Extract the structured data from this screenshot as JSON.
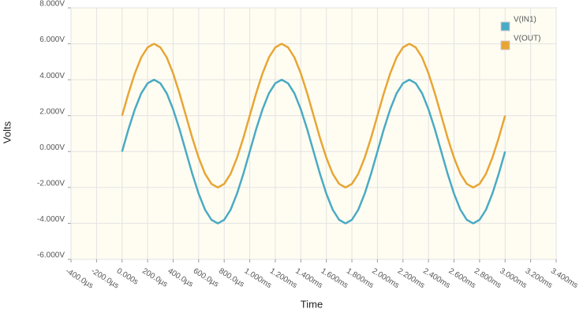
{
  "chart_data": {
    "type": "line",
    "x_label": "Time",
    "y_label": "Volts",
    "x": [
      0,
      0.05,
      0.1,
      0.15,
      0.2,
      0.25,
      0.3,
      0.35,
      0.4,
      0.45,
      0.5,
      0.55,
      0.6,
      0.65,
      0.7,
      0.75,
      0.8,
      0.85,
      0.9,
      0.95,
      1,
      1.05,
      1.1,
      1.15,
      1.2,
      1.25,
      1.3,
      1.35,
      1.4,
      1.45,
      1.5,
      1.55,
      1.6,
      1.65,
      1.7,
      1.75,
      1.8,
      1.85,
      1.9,
      1.95,
      2,
      2.05,
      2.1,
      2.15,
      2.2,
      2.25,
      2.3,
      2.35,
      2.4,
      2.45,
      2.5,
      2.55,
      2.6,
      2.65,
      2.7,
      2.75,
      2.8,
      2.85,
      2.9,
      2.95,
      3
    ],
    "series": [
      {
        "name": "V(IN1)",
        "color": "#4aaac4",
        "values": [
          0,
          1.24,
          2.35,
          3.24,
          3.8,
          4,
          3.8,
          3.24,
          2.35,
          1.24,
          0,
          -1.24,
          -2.35,
          -3.24,
          -3.8,
          -4,
          -3.8,
          -3.24,
          -2.35,
          -1.24,
          0,
          1.24,
          2.35,
          3.24,
          3.8,
          4,
          3.8,
          3.24,
          2.35,
          1.24,
          0,
          -1.24,
          -2.35,
          -3.24,
          -3.8,
          -4,
          -3.8,
          -3.24,
          -2.35,
          -1.24,
          0,
          1.24,
          2.35,
          3.24,
          3.8,
          4,
          3.8,
          3.24,
          2.35,
          1.24,
          0,
          -1.24,
          -2.35,
          -3.24,
          -3.8,
          -4,
          -3.8,
          -3.24,
          -2.35,
          -1.24,
          0
        ]
      },
      {
        "name": "V(OUT)",
        "color": "#e8a535",
        "values": [
          2,
          3.24,
          4.35,
          5.24,
          5.8,
          6,
          5.8,
          5.24,
          4.35,
          3.24,
          2,
          0.76,
          -0.35,
          -1.24,
          -1.8,
          -2,
          -1.8,
          -1.24,
          -0.35,
          0.76,
          2,
          3.24,
          4.35,
          5.24,
          5.8,
          6,
          5.8,
          5.24,
          4.35,
          3.24,
          2,
          0.76,
          -0.35,
          -1.24,
          -1.8,
          -2,
          -1.8,
          -1.24,
          -0.35,
          0.76,
          2,
          3.24,
          4.35,
          5.24,
          5.8,
          6,
          5.8,
          5.24,
          4.35,
          3.24,
          2,
          0.76,
          -0.35,
          -1.24,
          -1.8,
          -2,
          -1.8,
          -1.24,
          -0.35,
          0.76,
          2
        ]
      }
    ],
    "xlim": [
      -0.4,
      3.4
    ],
    "xticks": [
      {
        "value": -0.4,
        "label": "-400.0µs"
      },
      {
        "value": -0.2,
        "label": "-200.0µs"
      },
      {
        "value": 0,
        "label": "0.000s"
      },
      {
        "value": 0.2,
        "label": "200.0µs"
      },
      {
        "value": 0.4,
        "label": "400.0µs"
      },
      {
        "value": 0.6,
        "label": "600.0µs"
      },
      {
        "value": 0.8,
        "label": "800.0µs"
      },
      {
        "value": 1,
        "label": "1.000ms"
      },
      {
        "value": 1.2,
        "label": "1.200ms"
      },
      {
        "value": 1.4,
        "label": "1.400ms"
      },
      {
        "value": 1.6,
        "label": "1.600ms"
      },
      {
        "value": 1.8,
        "label": "1.800ms"
      },
      {
        "value": 2,
        "label": "2.000ms"
      },
      {
        "value": 2.2,
        "label": "2.200ms"
      },
      {
        "value": 2.4,
        "label": "2.400ms"
      },
      {
        "value": 2.6,
        "label": "2.600ms"
      },
      {
        "value": 2.8,
        "label": "2.800ms"
      },
      {
        "value": 3,
        "label": "3.000ms"
      },
      {
        "value": 3.2,
        "label": "3.200ms"
      },
      {
        "value": 3.4,
        "label": "3.400ms"
      }
    ],
    "ylim": [
      -6,
      8
    ],
    "yticks": [
      {
        "value": -6,
        "label": "-6.000V"
      },
      {
        "value": -4,
        "label": "-4.000V"
      },
      {
        "value": -2,
        "label": "-2.000V"
      },
      {
        "value": 0,
        "label": "0.000V"
      },
      {
        "value": 2,
        "label": "2.000V"
      },
      {
        "value": 4,
        "label": "4.000V"
      },
      {
        "value": 6,
        "label": "6.000V"
      },
      {
        "value": 8,
        "label": "8.000V"
      }
    ],
    "grid": true,
    "legend_position": "top-right"
  }
}
